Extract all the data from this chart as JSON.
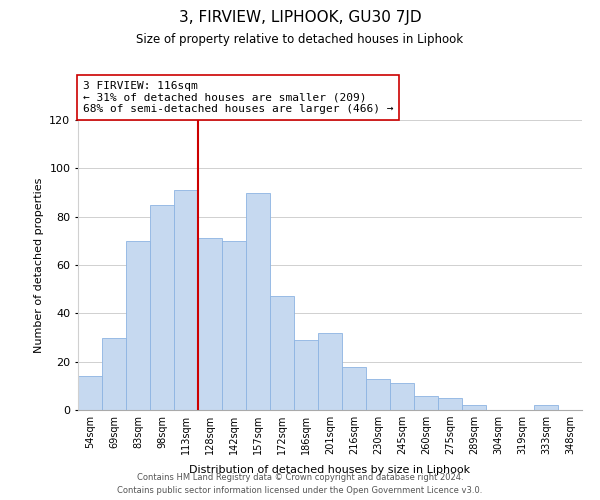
{
  "title": "3, FIRVIEW, LIPHOOK, GU30 7JD",
  "subtitle": "Size of property relative to detached houses in Liphook",
  "xlabel": "Distribution of detached houses by size in Liphook",
  "ylabel": "Number of detached properties",
  "bar_labels": [
    "54sqm",
    "69sqm",
    "83sqm",
    "98sqm",
    "113sqm",
    "128sqm",
    "142sqm",
    "157sqm",
    "172sqm",
    "186sqm",
    "201sqm",
    "216sqm",
    "230sqm",
    "245sqm",
    "260sqm",
    "275sqm",
    "289sqm",
    "304sqm",
    "319sqm",
    "333sqm",
    "348sqm"
  ],
  "bar_values": [
    14,
    30,
    70,
    85,
    91,
    71,
    70,
    90,
    47,
    29,
    32,
    18,
    13,
    11,
    6,
    5,
    2,
    0,
    0,
    2,
    0
  ],
  "bar_color": "#c6d9f0",
  "bar_edge_color": "#8db4e2",
  "vline_x": 4.5,
  "vline_color": "#cc0000",
  "annotation_text": "3 FIRVIEW: 116sqm\n← 31% of detached houses are smaller (209)\n68% of semi-detached houses are larger (466) →",
  "annotation_box_color": "#ffffff",
  "annotation_box_edge": "#cc0000",
  "ylim": [
    0,
    120
  ],
  "yticks": [
    0,
    20,
    40,
    60,
    80,
    100,
    120
  ],
  "grid_color": "#d0d0d0",
  "background_color": "#ffffff",
  "footer_line1": "Contains HM Land Registry data © Crown copyright and database right 2024.",
  "footer_line2": "Contains public sector information licensed under the Open Government Licence v3.0."
}
